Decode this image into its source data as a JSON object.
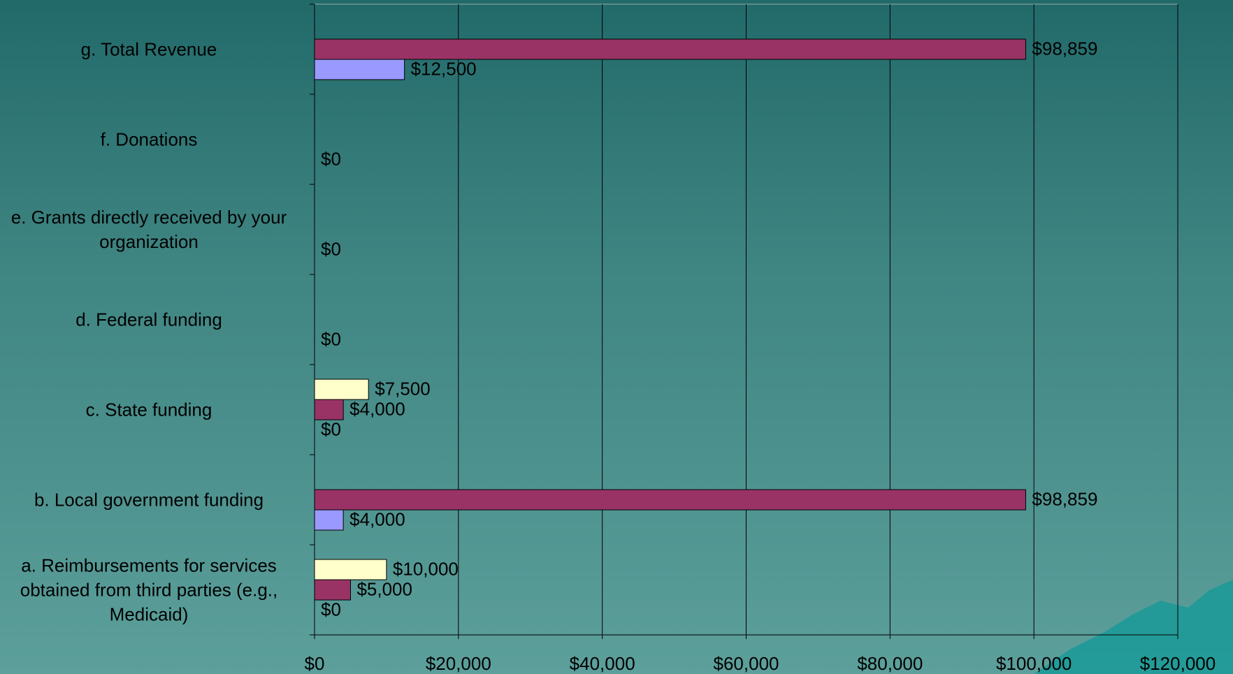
{
  "chart_data": {
    "type": "bar",
    "orientation": "horizontal",
    "categories": [
      "a.  Reimbursements for services obtained from third parties (e.g., Medicaid)",
      "b.  Local government funding",
      "c.  State funding",
      "d.  Federal funding",
      "e.  Grants directly received by your organization",
      "f.   Donations",
      "g.  Total  Revenue"
    ],
    "series": [
      {
        "color": "#ffffcc",
        "values": [
          10000,
          null,
          7500,
          null,
          null,
          null,
          null
        ],
        "value_labels": [
          "$10,000",
          null,
          "$7,500",
          null,
          null,
          null,
          null
        ]
      },
      {
        "color": "#993366",
        "values": [
          5000,
          98859,
          4000,
          null,
          null,
          null,
          98859
        ],
        "value_labels": [
          "$5,000",
          "$98,859",
          "$4,000",
          null,
          null,
          null,
          "$98,859"
        ]
      },
      {
        "color": "#9999ff",
        "values": [
          0,
          4000,
          0,
          0,
          0,
          0,
          12500
        ],
        "value_labels": [
          "$0",
          "$4,000",
          "$0",
          "$0",
          "$0",
          "$0",
          "$12,500"
        ]
      }
    ],
    "xlim": [
      0,
      120000
    ],
    "xticks": [
      {
        "value": 0,
        "label": "$0"
      },
      {
        "value": 20000,
        "label": "$20,000"
      },
      {
        "value": 40000,
        "label": "$40,000"
      },
      {
        "value": 60000,
        "label": "$60,000"
      },
      {
        "value": 80000,
        "label": "$80,000"
      },
      {
        "value": 100000,
        "label": "$100,000"
      },
      {
        "value": 120000,
        "label": "$120,000"
      }
    ],
    "grid": true
  }
}
